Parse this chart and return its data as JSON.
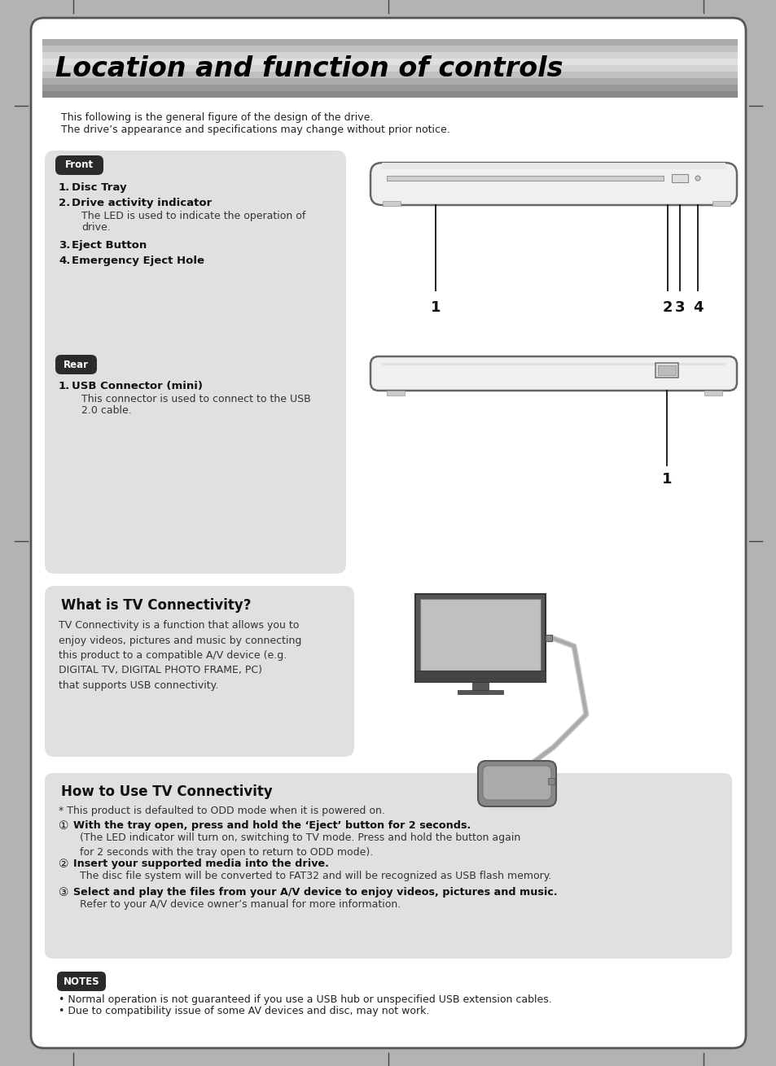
{
  "page_bg": "#b3b3b3",
  "content_bg": "#ffffff",
  "panel_bg": "#e0e0e0",
  "title_text": "Location and function of controls",
  "intro_line1": "This following is the general figure of the design of the drive.",
  "intro_line2": "The drive’s appearance and specifications may change without prior notice.",
  "front_label": "Front",
  "rear_label": "Rear",
  "tv_title": "What is TV Connectivity?",
  "tv_body": "TV Connectivity is a function that allows you to\nenjoy videos, pictures and music by connecting\nthis product to a compatible A/V device (e.g.\nDIGITAL TV, DIGITAL PHOTO FRAME, PC)\nthat supports USB connectivity.",
  "how_title": "How to Use TV Connectivity",
  "how_note": "* This product is defaulted to ODD mode when it is powered on.",
  "step1_bold": "With the tray open, press and hold the ‘Eject’ button for 2 seconds.",
  "step1_rest": "(The LED indicator will turn on, switching to TV mode. Press and hold the button again\nfor 2 seconds with the tray open to return to ODD mode).",
  "step2_bold": "Insert your supported media into the drive.",
  "step2_rest": "The disc file system will be converted to FAT32 and will be recognized as USB flash memory.",
  "step3_bold": "Select and play the files from your A/V device to enjoy videos, pictures and music.",
  "step3_rest": "Refer to your A/V device owner’s manual for more information.",
  "notes_label": "NOTES",
  "note1": "• Normal operation is not guaranteed if you use a USB hub or unspecified USB extension cables.",
  "note2": "• Due to compatibility issue of some AV devices and disc, may not work."
}
